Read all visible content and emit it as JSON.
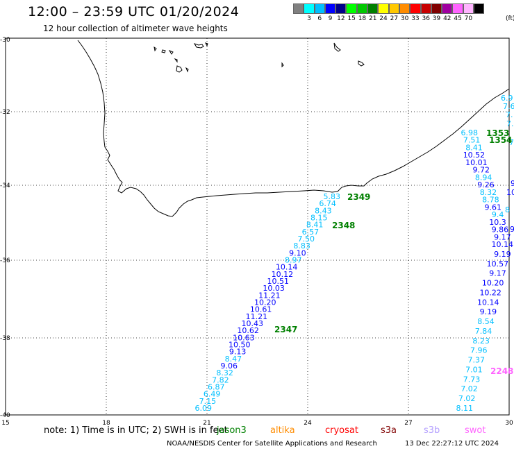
{
  "header": {
    "title": "12:00 – 23:59 UTC 01/20/2024",
    "subtitle": "12 hour collection of altimeter wave heights"
  },
  "colorbar": {
    "unit": "(ft)",
    "swatches": [
      {
        "label": "",
        "color": "#808080"
      },
      {
        "label": "3",
        "color": "#00ffff"
      },
      {
        "label": "6",
        "color": "#00bfff"
      },
      {
        "label": "9",
        "color": "#0000ff"
      },
      {
        "label": "12",
        "color": "#00008b"
      },
      {
        "label": "15",
        "color": "#00ff00"
      },
      {
        "label": "18",
        "color": "#00c800"
      },
      {
        "label": "21",
        "color": "#008000"
      },
      {
        "label": "24",
        "color": "#ffff00"
      },
      {
        "label": "27",
        "color": "#ffc800"
      },
      {
        "label": "30",
        "color": "#ff8c00"
      },
      {
        "label": "33",
        "color": "#ff0000"
      },
      {
        "label": "36",
        "color": "#c80000"
      },
      {
        "label": "39",
        "color": "#800000"
      },
      {
        "label": "42",
        "color": "#a000a0"
      },
      {
        "label": "45",
        "color": "#ff64ff"
      },
      {
        "label": "70",
        "color": "#ffb4ff"
      },
      {
        "label": "",
        "color": "#000000"
      }
    ]
  },
  "axes": {
    "lat_labels": [
      "-30",
      "-32",
      "-34",
      "-36",
      "-38",
      "-40"
    ],
    "lon_labels": [
      "15",
      "18",
      "21",
      "24",
      "27",
      "30"
    ]
  },
  "west_track": {
    "pass_labels": [
      {
        "text": "2349",
        "color": "#008000"
      },
      {
        "text": "2348",
        "color": "#008000"
      },
      {
        "text": "2347",
        "color": "#008000"
      }
    ],
    "values": [
      {
        "text": "5.83",
        "color": "#00bfff"
      },
      {
        "text": "6.74",
        "color": "#00bfff"
      },
      {
        "text": "8.43",
        "color": "#00bfff"
      },
      {
        "text": "8.15",
        "color": "#00bfff"
      },
      {
        "text": "8.41",
        "color": "#00bfff"
      },
      {
        "text": "6.57",
        "color": "#00bfff"
      },
      {
        "text": "7.50",
        "color": "#00bfff"
      },
      {
        "text": "8.83",
        "color": "#00bfff"
      },
      {
        "text": "9.10",
        "color": "#0000ff"
      },
      {
        "text": "8.97",
        "color": "#00bfff"
      },
      {
        "text": "10.14",
        "color": "#0000ff"
      },
      {
        "text": "10.12",
        "color": "#0000ff"
      },
      {
        "text": "10.51",
        "color": "#0000ff"
      },
      {
        "text": "10.03",
        "color": "#0000ff"
      },
      {
        "text": "11.21",
        "color": "#0000ff"
      },
      {
        "text": "10.20",
        "color": "#0000ff"
      },
      {
        "text": "10.61",
        "color": "#0000ff"
      },
      {
        "text": "11.21",
        "color": "#0000ff"
      },
      {
        "text": "10.43",
        "color": "#0000ff"
      },
      {
        "text": "10.62",
        "color": "#0000ff"
      },
      {
        "text": "10.63",
        "color": "#0000ff"
      },
      {
        "text": "10.50",
        "color": "#0000ff"
      },
      {
        "text": "9.13",
        "color": "#0000ff"
      },
      {
        "text": "8.47",
        "color": "#00bfff"
      },
      {
        "text": "9.06",
        "color": "#0000ff"
      },
      {
        "text": "8.32",
        "color": "#00bfff"
      },
      {
        "text": "7.82",
        "color": "#00bfff"
      },
      {
        "text": "6.87",
        "color": "#00bfff"
      },
      {
        "text": "6.49",
        "color": "#00bfff"
      },
      {
        "text": "7.15",
        "color": "#00bfff"
      },
      {
        "text": "6.09",
        "color": "#00bfff"
      }
    ]
  },
  "east_track": {
    "pass_labels": [
      {
        "text": "1353",
        "color": "#008000"
      },
      {
        "text": "1354",
        "color": "#008000"
      },
      {
        "text": "2248",
        "color": "#ff64ff"
      }
    ],
    "values": [
      {
        "text": "6.98",
        "color": "#00bfff"
      },
      {
        "text": "7.51",
        "color": "#00bfff"
      },
      {
        "text": "8.41",
        "color": "#00bfff"
      },
      {
        "text": "10.52",
        "color": "#0000ff"
      },
      {
        "text": "10.01",
        "color": "#0000ff"
      },
      {
        "text": "9.72",
        "color": "#0000ff"
      },
      {
        "text": "8.94",
        "color": "#00bfff"
      },
      {
        "text": "9.26",
        "color": "#0000ff"
      },
      {
        "text": "8.32",
        "color": "#00bfff"
      },
      {
        "text": "8.78",
        "color": "#00bfff"
      },
      {
        "text": "9.61",
        "color": "#0000ff"
      },
      {
        "text": "9.4",
        "color": "#00bfff"
      },
      {
        "text": "10.3",
        "color": "#0000ff"
      },
      {
        "text": "9.86",
        "color": "#0000ff"
      },
      {
        "text": "9.17",
        "color": "#0000ff"
      },
      {
        "text": "10.14",
        "color": "#0000ff"
      },
      {
        "text": "9.19",
        "color": "#0000ff"
      },
      {
        "text": "10.57",
        "color": "#0000ff"
      },
      {
        "text": "9.17",
        "color": "#0000ff"
      },
      {
        "text": "10.20",
        "color": "#0000ff"
      },
      {
        "text": "10.22",
        "color": "#0000ff"
      },
      {
        "text": "10.14",
        "color": "#0000ff"
      },
      {
        "text": "9.19",
        "color": "#0000ff"
      },
      {
        "text": "8.54",
        "color": "#00bfff"
      },
      {
        "text": "7.84",
        "color": "#00bfff"
      },
      {
        "text": "8.23",
        "color": "#00bfff"
      },
      {
        "text": "7.96",
        "color": "#00bfff"
      },
      {
        "text": "7.37",
        "color": "#00bfff"
      },
      {
        "text": "7.01",
        "color": "#00bfff"
      },
      {
        "text": "7.73",
        "color": "#00bfff"
      },
      {
        "text": "7.02",
        "color": "#00bfff"
      },
      {
        "text": "7.02",
        "color": "#00bfff"
      },
      {
        "text": "8.11",
        "color": "#00bfff"
      }
    ]
  },
  "edge_track": {
    "values": [
      {
        "text": "6.9",
        "color": "#00bfff"
      },
      {
        "text": "7.6",
        "color": "#00bfff"
      },
      {
        "text": "7.",
        "color": "#00bfff"
      },
      {
        "text": "7.",
        "color": "#00bfff"
      },
      {
        "text": "7",
        "color": "#00bfff"
      },
      {
        "text": "9",
        "color": "#0000ff"
      },
      {
        "text": "10",
        "color": "#0000ff"
      },
      {
        "text": "8",
        "color": "#00bfff"
      },
      {
        "text": "9.",
        "color": "#0000ff"
      }
    ]
  },
  "footer": {
    "note": "note:  1) Time is in UTC;  2) SWH is in feet",
    "satellites": [
      {
        "name": "jason3",
        "color": "#008000"
      },
      {
        "name": "altika",
        "color": "#ff8c00"
      },
      {
        "name": "cryosat",
        "color": "#ff0000"
      },
      {
        "name": "s3a",
        "color": "#800000"
      },
      {
        "name": "s3b",
        "color": "#b4a0ff"
      },
      {
        "name": "swot",
        "color": "#ff64ff"
      }
    ],
    "credit": "NOAA/NESDIS Center for Satellite Applications and Research",
    "timestamp": "13 Dec 22:27:12 UTC 2024"
  }
}
